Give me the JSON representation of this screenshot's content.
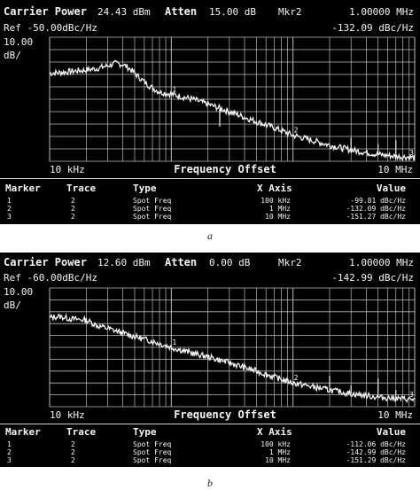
{
  "chart_data": [
    {
      "type": "line",
      "caption": "a",
      "header": {
        "carrier_label": "Carrier Power",
        "carrier_value": "24.43 dBm",
        "atten_label": "Atten",
        "atten_value": "15.00 dB",
        "marker_label": "Mkr2",
        "marker_freq": "1.00000 MHz",
        "ref_text": "Ref -50.00dBc/Hz",
        "marker_value": "-132.09 dBc/Hz",
        "scale": "10.00",
        "scale_unit": "dB/"
      },
      "xlabel": "Frequency Offset",
      "x_start": "10 kHz",
      "x_end": "10 MHz",
      "x_scale": "log",
      "xlim_hz": [
        10000,
        10000000
      ],
      "ylim": [
        -150,
        -50
      ],
      "grid": true,
      "series": [
        {
          "x": [
            10000,
            12000,
            15000,
            20000,
            25000,
            30000,
            35000,
            40000,
            45000,
            50000,
            60000,
            70000,
            80000,
            100000,
            150000,
            200000,
            300000,
            500000,
            700000,
            1000000,
            2000000,
            3000000,
            5000000,
            7000000,
            10000000
          ],
          "y": [
            -79,
            -78.5,
            -77.5,
            -76.5,
            -75,
            -73,
            -71,
            -72,
            -75,
            -79,
            -86,
            -91,
            -94,
            -96,
            -100,
            -104,
            -110,
            -118,
            -123,
            -129,
            -137,
            -141,
            -144.5,
            -146,
            -147
          ]
        }
      ],
      "spurs": [
        {
          "x": 250000,
          "top": -122
        },
        {
          "x": 3000000,
          "top": -131
        },
        {
          "x": 5000000,
          "top": -136
        },
        {
          "x": 7000000,
          "top": -133
        }
      ],
      "markers": [
        {
          "label": "1",
          "x": 100000,
          "y": -99.81
        },
        {
          "label": "2",
          "x": 1000000,
          "y": -132.09
        },
        {
          "label": "3",
          "x": 10000000,
          "y": -151.27
        }
      ],
      "table": {
        "headers": [
          "Marker",
          "Trace",
          "Type",
          "X Axis",
          "Value"
        ],
        "rows": [
          [
            "1",
            "2",
            "Spot Freq",
            "100 kHz",
            "-99.81 dBc/Hz"
          ],
          [
            "2",
            "2",
            "Spot Freq",
            "1 MHz",
            "-132.09 dBc/Hz"
          ],
          [
            "3",
            "2",
            "Spot Freq",
            "10 MHz",
            "-151.27 dBc/Hz"
          ]
        ]
      }
    },
    {
      "type": "line",
      "caption": "b",
      "header": {
        "carrier_label": "Carrier Power",
        "carrier_value": "12.60 dBm",
        "atten_label": "Atten",
        "atten_value": "0.00 dB",
        "marker_label": "Mkr2",
        "marker_freq": "1.00000 MHz",
        "ref_text": "Ref -60.00dBc/Hz",
        "marker_value": "-142.99 dBc/Hz",
        "scale": "10.00",
        "scale_unit": "dB/"
      },
      "xlabel": "Frequency Offset",
      "x_start": "10 kHz",
      "x_end": "10 MHz",
      "x_scale": "log",
      "xlim_hz": [
        10000,
        10000000
      ],
      "ylim": [
        -160,
        -60
      ],
      "grid": true,
      "series": [
        {
          "x": [
            10000,
            12000,
            15000,
            20000,
            25000,
            30000,
            40000,
            50000,
            70000,
            100000,
            150000,
            200000,
            300000,
            500000,
            700000,
            1000000,
            2000000,
            3000000,
            5000000,
            7000000,
            10000000
          ],
          "y": [
            -85,
            -84,
            -86,
            -87,
            -92,
            -94,
            -98,
            -101,
            -105,
            -110,
            -115,
            -118,
            -123,
            -130,
            -135,
            -140,
            -146,
            -149,
            -152,
            -153,
            -154
          ]
        }
      ],
      "spurs": [
        {
          "x": 2000000,
          "top": -134
        },
        {
          "x": 3000000,
          "top": -142
        },
        {
          "x": 5000000,
          "top": -136
        },
        {
          "x": 7000000,
          "top": -146
        }
      ],
      "markers": [
        {
          "label": "1",
          "x": 100000,
          "y": -112.06
        },
        {
          "label": "2",
          "x": 1000000,
          "y": -142.99
        },
        {
          "label": "3",
          "x": 10000000,
          "y": -151.29
        }
      ],
      "table": {
        "headers": [
          "Marker",
          "Trace",
          "Type",
          "X Axis",
          "Value"
        ],
        "rows": [
          [
            "1",
            "2",
            "Spot Freq",
            "100 kHz",
            "-112.06 dBc/Hz"
          ],
          [
            "2",
            "2",
            "Spot Freq",
            "1 MHz",
            "-142.99 dBc/Hz"
          ],
          [
            "3",
            "2",
            "Spot Freq",
            "10 MHz",
            "-151.29 dBc/Hz"
          ]
        ]
      }
    }
  ]
}
